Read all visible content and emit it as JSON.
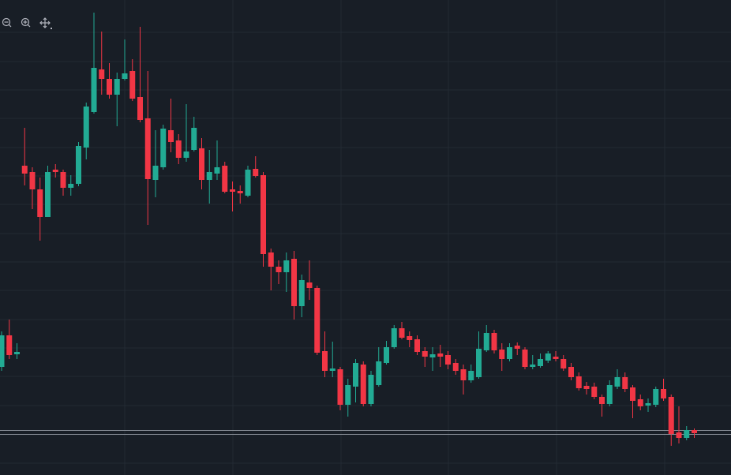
{
  "chart_data": {
    "type": "candlestick",
    "ylim": [
      0,
      602
    ],
    "up_color": "#22ab94",
    "down_color": "#f23645",
    "open": [
      137,
      177,
      153,
      392,
      384,
      362,
      327,
      387,
      384,
      364,
      369,
      415,
      460,
      514,
      502,
      482,
      502,
      512,
      479,
      452,
      374,
      390,
      437,
      424,
      402,
      412,
      414,
      374,
      382,
      392,
      362,
      360,
      354,
      388,
      380,
      282,
      264,
      257,
      274,
      214,
      244,
      237,
      157,
      132,
      134,
      89,
      112,
      140,
      90,
      114,
      142,
      162,
      186,
      176,
      172,
      157,
      149,
      154,
      152,
      142,
      134,
      120,
      124,
      158,
      180,
      159,
      147,
      164,
      159,
      137,
      138,
      145,
      150,
      147,
      137,
      125,
      113,
      112,
      99,
      90,
      112,
      124,
      111,
      96,
      88,
      89,
      109,
      99,
      54,
      47,
      57
    ],
    "high": [
      182,
      197,
      167,
      440,
      390,
      377,
      392,
      394,
      387,
      380,
      422,
      472,
      586,
      562,
      522,
      510,
      552,
      527,
      568,
      512,
      437,
      444,
      477,
      432,
      470,
      454,
      427,
      412,
      424,
      397,
      372,
      367,
      392,
      404,
      384,
      287,
      272,
      282,
      284,
      254,
      272,
      240,
      182,
      169,
      137,
      122,
      147,
      144,
      132,
      162,
      170,
      190,
      194,
      182,
      177,
      162,
      162,
      165,
      157,
      147,
      140,
      140,
      182,
      190,
      184,
      167,
      167,
      168,
      162,
      152,
      154,
      157,
      157,
      152,
      142,
      130,
      118,
      117,
      102,
      120,
      134,
      130,
      114,
      102,
      97,
      112,
      122,
      102,
      87,
      62,
      59
    ],
    "low": [
      132,
      147,
      147,
      367,
      337,
      297,
      327,
      377,
      354,
      354,
      366,
      400,
      458,
      482,
      477,
      442,
      500,
      474,
      447,
      317,
      352,
      387,
      409,
      394,
      397,
      410,
      362,
      344,
      374,
      357,
      334,
      344,
      352,
      377,
      264,
      234,
      242,
      232,
      197,
      200,
      222,
      152,
      124,
      124,
      82,
      74,
      92,
      87,
      87,
      112,
      140,
      160,
      172,
      162,
      152,
      137,
      132,
      137,
      134,
      127,
      102,
      117,
      122,
      156,
      154,
      132,
      144,
      152,
      134,
      134,
      136,
      142,
      144,
      132,
      120,
      107,
      102,
      96,
      74,
      87,
      109,
      105,
      72,
      82,
      80,
      86,
      94,
      37,
      40,
      44,
      47
    ],
    "close": [
      177,
      152,
      156,
      382,
      362,
      327,
      384,
      384,
      364,
      369,
      417,
      467,
      516,
      502,
      482,
      502,
      509,
      477,
      450,
      375,
      392,
      439,
      422,
      402,
      410,
      440,
      374,
      384,
      390,
      359,
      359,
      357,
      387,
      379,
      280,
      264,
      257,
      272,
      214,
      247,
      237,
      155,
      132,
      135,
      89,
      114,
      142,
      90,
      127,
      144,
      162,
      186,
      174,
      171,
      156,
      150,
      153,
      150,
      140,
      132,
      120,
      132,
      160,
      180,
      158,
      147,
      162,
      160,
      137,
      140,
      147,
      154,
      147,
      135,
      124,
      110,
      109,
      99,
      90,
      114,
      124,
      109,
      94,
      87,
      91,
      109,
      97,
      52,
      47,
      57,
      53
    ]
  }
}
